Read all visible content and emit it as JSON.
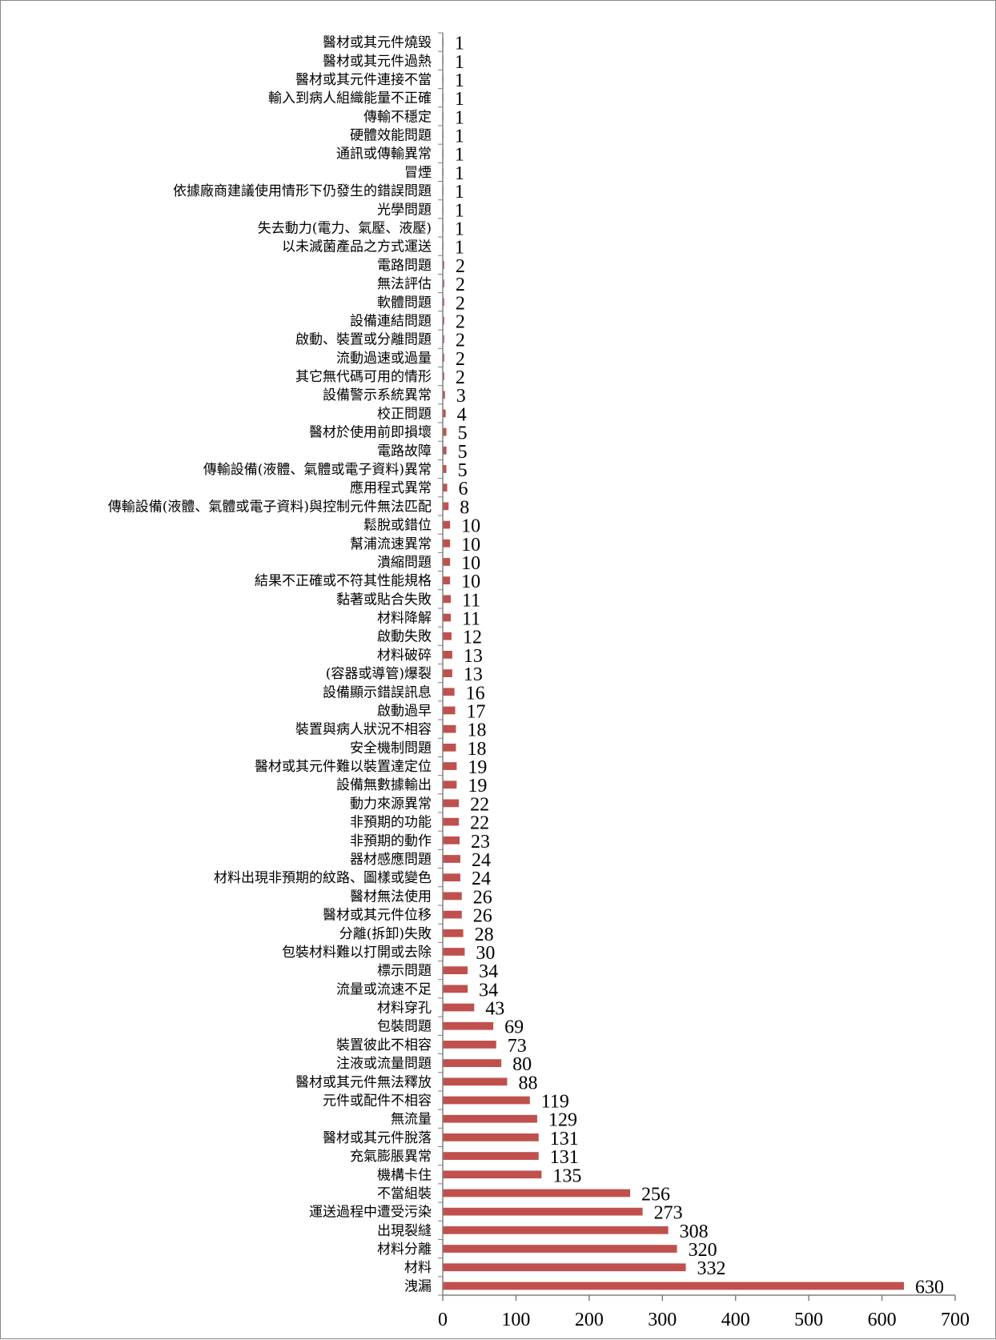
{
  "chart_data": {
    "type": "bar",
    "orientation": "horizontal",
    "bar_color": "#c0504d",
    "axis_color": "#808080",
    "xlim": [
      0,
      700
    ],
    "x_ticks": [
      0,
      100,
      200,
      300,
      400,
      500,
      600,
      700
    ],
    "grid": false,
    "legend": "none",
    "categories": [
      "醫材或其元件燒毀",
      "醫材或其元件過熱",
      "醫材或其元件連接不當",
      "輸入到病人組織能量不正確",
      "傳輸不穩定",
      "硬體效能問題",
      "通訊或傳輸異常",
      "冒煙",
      "依據廠商建議使用情形下仍發生的錯誤問題",
      "光學問題",
      "失去動力(電力、氣壓、液壓)",
      "以未滅菌產品之方式運送",
      "電路問題",
      "無法評估",
      "軟體問題",
      "設備連結問題",
      "啟動、裝置或分離問題",
      "流動過速或過量",
      "其它無代碼可用的情形",
      "設備警示系統異常",
      "校正問題",
      "醫材於使用前即損壞",
      "電路故障",
      "傳輸設備(液體、氣體或電子資料)異常",
      "應用程式異常",
      "傳輸設備(液體、氣體或電子資料)與控制元件無法匹配",
      "鬆脫或錯位",
      "幫浦流速異常",
      "潰縮問題",
      "結果不正確或不符其性能規格",
      "黏著或貼合失敗",
      "材料降解",
      "啟動失敗",
      "材料破碎",
      "(容器或導管)爆裂",
      "設備顯示錯誤訊息",
      "啟動過早",
      "裝置與病人狀況不相容",
      "安全機制問題",
      "醫材或其元件難以裝置達定位",
      "設備無數據輸出",
      "動力來源異常",
      "非預期的功能",
      "非預期的動作",
      "器材感應問題",
      "材料出現非預期的紋路、圖樣或變色",
      "醫材無法使用",
      "醫材或其元件位移",
      "分離(拆卸)失敗",
      "包裝材料難以打開或去除",
      "標示問題",
      "流量或流速不足",
      "材料穿孔",
      "包裝問題",
      "裝置彼此不相容",
      "注液或流量問題",
      "醫材或其元件無法釋放",
      "元件或配件不相容",
      "無流量",
      "醫材或其元件脫落",
      "充氣膨脹異常",
      "機構卡住",
      "不當組裝",
      "運送過程中遭受污染",
      "出現裂縫",
      "材料分離",
      "材料",
      "洩漏"
    ],
    "values": [
      1,
      1,
      1,
      1,
      1,
      1,
      1,
      1,
      1,
      1,
      1,
      1,
      2,
      2,
      2,
      2,
      2,
      2,
      2,
      3,
      4,
      5,
      5,
      5,
      6,
      8,
      10,
      10,
      10,
      10,
      11,
      11,
      12,
      13,
      13,
      16,
      17,
      18,
      18,
      19,
      19,
      22,
      22,
      23,
      24,
      24,
      26,
      26,
      28,
      30,
      34,
      34,
      43,
      69,
      73,
      80,
      88,
      119,
      129,
      131,
      131,
      135,
      256,
      273,
      308,
      320,
      332,
      630
    ]
  }
}
